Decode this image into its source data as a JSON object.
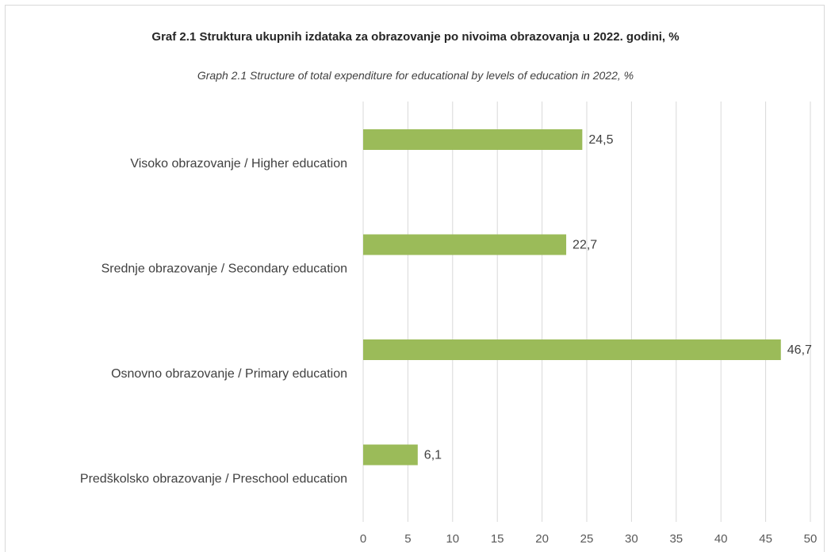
{
  "chart_data": {
    "type": "bar",
    "orientation": "horizontal",
    "title": "Graf 2.1 Struktura ukupnih izdataka za obrazovanje po nivoima obrazovanja u 2022. godini, %",
    "subtitle": "Graph 2.1 Structure of total expenditure for educational by levels of education in 2022, %",
    "categories": [
      "Visoko obrazovanje / Higher education",
      "Srednje obrazovanje / Secondary education",
      "Osnovno obrazovanje / Primary education",
      "Predškolsko obrazovanje / Preschool education"
    ],
    "values": [
      24.5,
      22.7,
      46.7,
      6.1
    ],
    "value_labels": [
      "24,5",
      "22,7",
      "46,7",
      "6,1"
    ],
    "xlim": [
      0,
      50
    ],
    "x_ticks": [
      0,
      5,
      10,
      15,
      20,
      25,
      30,
      35,
      40,
      45,
      50
    ],
    "grid": "vertical",
    "bar_color": "#9bbb59",
    "grid_color": "#d9d9d9",
    "legend": "none"
  }
}
